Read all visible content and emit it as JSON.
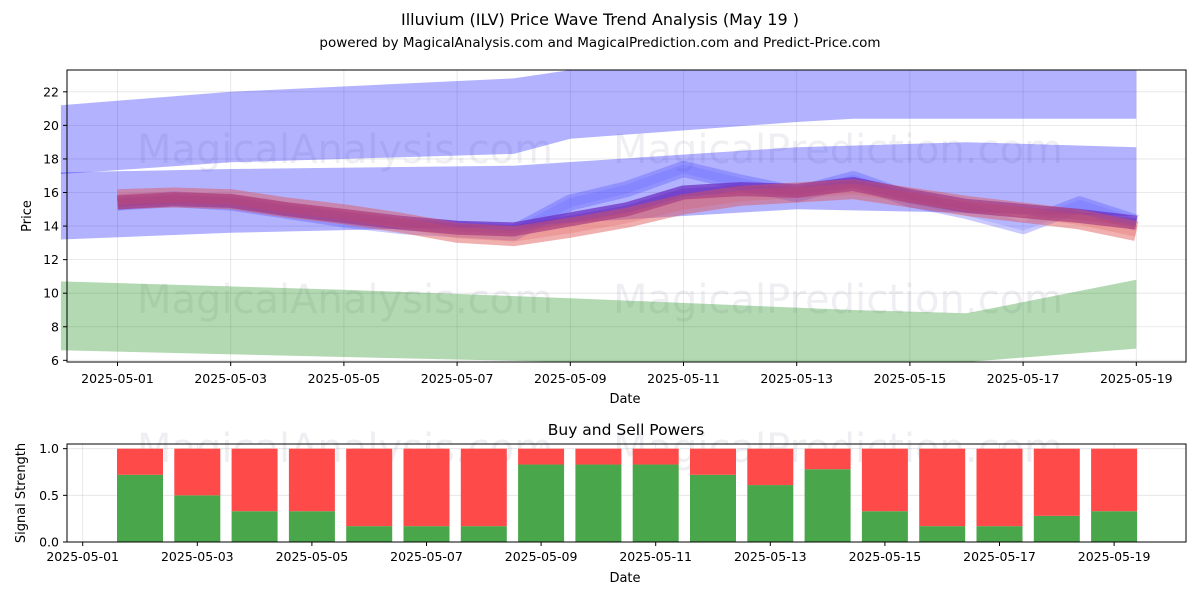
{
  "figure": {
    "title": "Illuvium (ILV) Price Wave Trend Analysis (May 19 )",
    "subtitle": "powered by MagicalAnalysis.com and MagicalPrediction.com and Predict-Price.com",
    "watermarks": [
      "MagicalAnalysis.com",
      "MagicalPrediction.com"
    ]
  },
  "chart_data": [
    {
      "type": "area",
      "title": "",
      "xlabel": "Date",
      "ylabel": "Price",
      "ylim": [
        5.9,
        23.3
      ],
      "yticks": [
        6,
        8,
        10,
        12,
        14,
        16,
        18,
        20,
        22
      ],
      "xticks": [
        "2025-05-01",
        "2025-05-03",
        "2025-05-05",
        "2025-05-07",
        "2025-05-09",
        "2025-05-11",
        "2025-05-13",
        "2025-05-15",
        "2025-05-17",
        "2025-05-19"
      ],
      "grid": true,
      "colors": {
        "blue_band": "#0000ff",
        "green_band": "#008000",
        "purple_line": "#7b2fbe",
        "red_line": "#e05050"
      },
      "bands": [
        {
          "color": "blue",
          "x": [
            "2025-04-30",
            "2025-05-03",
            "2025-05-08",
            "2025-05-09",
            "2025-05-13",
            "2025-05-14",
            "2025-05-19"
          ],
          "upper": [
            21.2,
            22.0,
            22.8,
            23.3,
            23.3,
            23.3,
            23.3
          ],
          "lower": [
            17.1,
            17.8,
            18.3,
            19.2,
            20.2,
            20.4,
            20.4
          ]
        },
        {
          "color": "blue",
          "x": [
            "2025-04-30",
            "2025-05-03",
            "2025-05-08",
            "2025-05-13",
            "2025-05-16",
            "2025-05-19"
          ],
          "upper": [
            17.2,
            17.4,
            17.6,
            18.7,
            19.0,
            18.7
          ],
          "lower": [
            13.2,
            13.6,
            14.0,
            15.0,
            14.8,
            14.6
          ]
        },
        {
          "color": "green",
          "x": [
            "2025-04-30",
            "2025-05-05",
            "2025-05-09",
            "2025-05-14",
            "2025-05-16",
            "2025-05-19"
          ],
          "upper": [
            10.7,
            10.2,
            9.7,
            9.0,
            8.8,
            10.8
          ],
          "lower": [
            6.6,
            6.2,
            5.9,
            5.9,
            5.9,
            6.7
          ]
        }
      ],
      "series": [
        {
          "color": "blue",
          "x": [
            "2025-05-01",
            "2025-05-02",
            "2025-05-03",
            "2025-05-04",
            "2025-05-05",
            "2025-05-06",
            "2025-05-07",
            "2025-05-08",
            "2025-05-09",
            "2025-05-10",
            "2025-05-11",
            "2025-05-12",
            "2025-05-13",
            "2025-05-14",
            "2025-05-15",
            "2025-05-16",
            "2025-05-17",
            "2025-05-18",
            "2025-05-19"
          ],
          "values": [
            15.4,
            15.6,
            15.4,
            14.9,
            14.4,
            14.0,
            13.8,
            13.6,
            15.4,
            16.2,
            17.4,
            16.6,
            15.9,
            16.8,
            15.6,
            14.9,
            14.0,
            15.3,
            14.2
          ]
        },
        {
          "color": "purple",
          "x": [
            "2025-05-01",
            "2025-05-02",
            "2025-05-03",
            "2025-05-04",
            "2025-05-05",
            "2025-05-06",
            "2025-05-07",
            "2025-05-08",
            "2025-05-09",
            "2025-05-10",
            "2025-05-11",
            "2025-05-12",
            "2025-05-13",
            "2025-05-14",
            "2025-05-15",
            "2025-05-16",
            "2025-05-17",
            "2025-05-18",
            "2025-05-19"
          ],
          "values": [
            15.4,
            15.6,
            15.5,
            15.0,
            14.6,
            14.2,
            13.9,
            13.8,
            14.4,
            15.0,
            16.0,
            16.2,
            16.1,
            16.5,
            15.8,
            15.2,
            14.9,
            14.6,
            14.2
          ]
        },
        {
          "color": "red",
          "x": [
            "2025-05-01",
            "2025-05-02",
            "2025-05-03",
            "2025-05-04",
            "2025-05-05",
            "2025-05-06",
            "2025-05-07",
            "2025-05-08",
            "2025-05-09",
            "2025-05-10",
            "2025-05-11",
            "2025-05-12",
            "2025-05-13",
            "2025-05-14",
            "2025-05-15",
            "2025-05-16",
            "2025-05-17",
            "2025-05-18",
            "2025-05-19"
          ],
          "values": [
            15.6,
            15.7,
            15.6,
            15.1,
            14.7,
            14.2,
            13.6,
            13.4,
            13.9,
            14.5,
            15.3,
            15.8,
            16.0,
            16.2,
            15.7,
            15.2,
            14.8,
            14.4,
            13.7
          ]
        }
      ]
    },
    {
      "type": "bar",
      "title": "Buy and Sell Powers",
      "xlabel": "Date",
      "ylabel": "Signal Strength",
      "ylim": [
        0,
        1.05
      ],
      "yticks": [
        "0.0",
        "0.5",
        "1.0"
      ],
      "xticks": [
        "2025-05-01",
        "2025-05-03",
        "2025-05-05",
        "2025-05-07",
        "2025-05-09",
        "2025-05-11",
        "2025-05-13",
        "2025-05-15",
        "2025-05-17",
        "2025-05-19"
      ],
      "grid": true,
      "colors": {
        "buy": "#4aa64a",
        "sell": "#ff4a4a"
      },
      "categories": [
        "2025-05-02",
        "2025-05-03",
        "2025-05-04",
        "2025-05-05",
        "2025-05-06",
        "2025-05-07",
        "2025-05-08",
        "2025-05-09",
        "2025-05-10",
        "2025-05-11",
        "2025-05-12",
        "2025-05-13",
        "2025-05-14",
        "2025-05-15",
        "2025-05-16",
        "2025-05-17",
        "2025-05-18",
        "2025-05-19"
      ],
      "series": [
        {
          "name": "buy",
          "values": [
            0.72,
            0.5,
            0.33,
            0.33,
            0.17,
            0.17,
            0.17,
            0.83,
            0.83,
            0.83,
            0.72,
            0.61,
            0.78,
            0.33,
            0.17,
            0.17,
            0.28,
            0.33
          ]
        },
        {
          "name": "sell",
          "values": [
            0.28,
            0.5,
            0.67,
            0.67,
            0.83,
            0.83,
            0.83,
            0.17,
            0.17,
            0.17,
            0.28,
            0.39,
            0.22,
            0.67,
            0.83,
            0.83,
            0.72,
            0.67
          ]
        }
      ]
    }
  ]
}
